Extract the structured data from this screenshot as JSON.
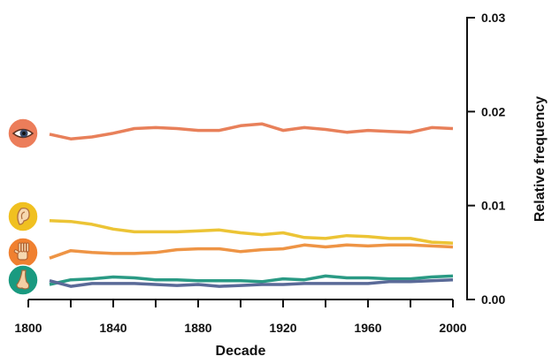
{
  "chart_data": {
    "type": "line",
    "xlabel": "Decade",
    "ylabel": "Relative frequency",
    "xlim": [
      1800,
      2000
    ],
    "ylim": [
      0,
      0.03
    ],
    "x_ticks": [
      1800,
      1840,
      1880,
      1920,
      1960,
      2000
    ],
    "x_minor_ticks": [
      1820,
      1860,
      1900,
      1940,
      1980
    ],
    "y_ticks": [
      0.0,
      0.01,
      0.02,
      0.03
    ],
    "y_tick_labels": [
      "0.00",
      "0.01",
      "0.02",
      "0.03"
    ],
    "y_axis_side": "right",
    "grid": false,
    "legend": "icons at left edge",
    "x": [
      1810,
      1820,
      1830,
      1840,
      1850,
      1860,
      1870,
      1880,
      1890,
      1900,
      1910,
      1920,
      1930,
      1940,
      1950,
      1960,
      1970,
      1980,
      1990,
      2000
    ],
    "series": [
      {
        "icon": "eye-icon",
        "color": "#e8805a",
        "icon_bg": "#ec7d5a",
        "values": [
          0.0176,
          0.0171,
          0.0173,
          0.0177,
          0.0182,
          0.0183,
          0.0182,
          0.018,
          0.018,
          0.0185,
          0.0187,
          0.018,
          0.0183,
          0.0181,
          0.0178,
          0.018,
          0.0179,
          0.0178,
          0.0183,
          0.0182
        ]
      },
      {
        "icon": "ear-icon",
        "color": "#ecc435",
        "icon_bg": "#f0c020",
        "values": [
          0.0084,
          0.0083,
          0.008,
          0.0075,
          0.0072,
          0.0072,
          0.0072,
          0.0073,
          0.0074,
          0.0071,
          0.0069,
          0.0071,
          0.0066,
          0.0065,
          0.0068,
          0.0067,
          0.0065,
          0.0065,
          0.0061,
          0.006
        ]
      },
      {
        "icon": "hand-icon",
        "color": "#ee9445",
        "icon_bg": "#f08030",
        "values": [
          0.0044,
          0.0052,
          0.005,
          0.0049,
          0.0049,
          0.005,
          0.0053,
          0.0054,
          0.0054,
          0.0051,
          0.0053,
          0.0054,
          0.0058,
          0.0056,
          0.0058,
          0.0057,
          0.0058,
          0.0058,
          0.0057,
          0.0056
        ]
      },
      {
        "icon": "nose-icon",
        "color": "#2a9a84",
        "icon_bg": "#1a9a80",
        "values": [
          0.0016,
          0.0021,
          0.0022,
          0.0024,
          0.0023,
          0.0021,
          0.0021,
          0.002,
          0.002,
          0.002,
          0.0019,
          0.0022,
          0.0021,
          0.0025,
          0.0023,
          0.0023,
          0.0022,
          0.0022,
          0.0024,
          0.0025
        ]
      },
      {
        "icon": "tongue-icon",
        "color": "#5a6a98",
        "icon_bg": "#5a6a98",
        "values": [
          0.002,
          0.0014,
          0.0017,
          0.0017,
          0.0017,
          0.0016,
          0.0015,
          0.0016,
          0.0014,
          0.0015,
          0.0016,
          0.0016,
          0.0017,
          0.0017,
          0.0017,
          0.0017,
          0.0019,
          0.0019,
          0.002,
          0.0021
        ]
      }
    ]
  }
}
